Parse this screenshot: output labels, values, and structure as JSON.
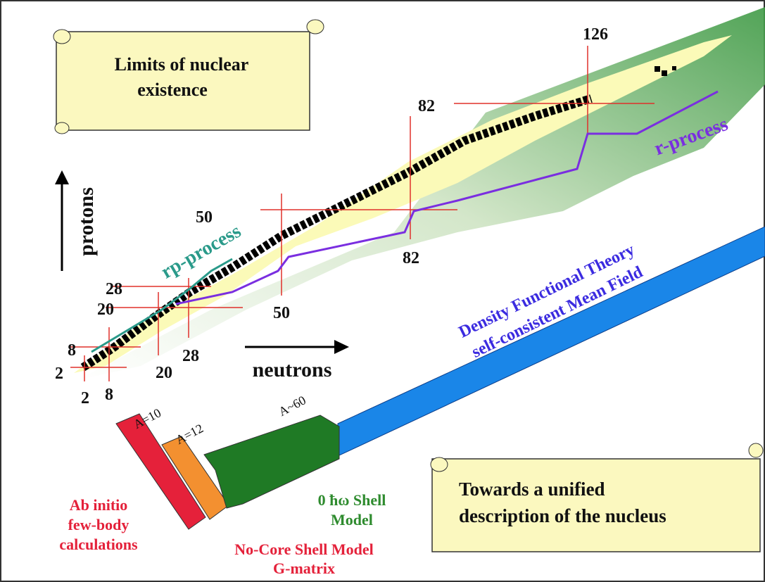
{
  "limits_scroll": {
    "lines": [
      "Limits of nuclear",
      "existence"
    ]
  },
  "axes": {
    "protons": "protons",
    "neutrons": "neutrons"
  },
  "magic_numbers": {
    "protons": [
      2,
      8,
      20,
      28,
      50,
      82
    ],
    "neutrons": [
      2,
      8,
      20,
      28,
      50,
      82,
      126
    ]
  },
  "processes": {
    "rp": "rp-process",
    "r": "r-process"
  },
  "dft": [
    "Density Functional Theory",
    "self-consistent Mean Field"
  ],
  "mass_labels": [
    "A=10",
    "A=12",
    "A~60"
  ],
  "methods": {
    "ab_initio": [
      "Ab initio",
      "few-body",
      "calculations"
    ],
    "shell_model": [
      "0 ħω Shell",
      "Model"
    ],
    "no_core": [
      "No-Core Shell Model",
      "G-matrix"
    ]
  },
  "unified_scroll": {
    "lines": [
      "Towards a unified",
      "description of the nucleus"
    ]
  }
}
